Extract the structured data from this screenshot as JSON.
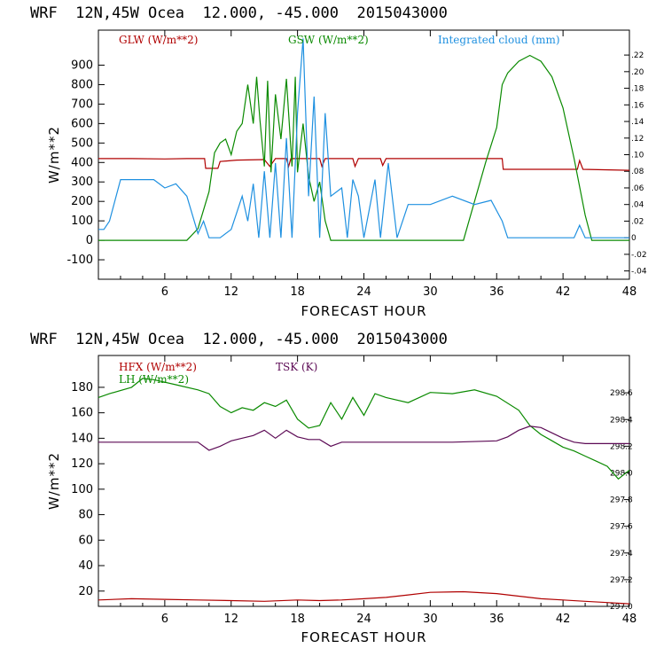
{
  "charts": [
    {
      "title": "WRF  12N,45W Ocea  12.000, -45.000  2015043000"
    },
    {
      "title": "WRF  12N,45W Ocea  12.000, -45.000  2015043000"
    }
  ],
  "chart_data": [
    {
      "type": "line",
      "title": "WRF  12N,45W Ocea  12.000, -45.000  2015043000",
      "xlabel": "FORECAST HOUR",
      "ylabel": "W/m**2",
      "xlim": [
        0,
        48
      ],
      "ylim": [
        -200,
        1080
      ],
      "xticks": [
        "6",
        "12",
        "18",
        "24",
        "30",
        "36",
        "42",
        "48"
      ],
      "yticks": [
        "-100",
        "0",
        "100",
        "200",
        "300",
        "400",
        "500",
        "600",
        "700",
        "800",
        "900"
      ],
      "y2lim": [
        -0.05,
        0.25
      ],
      "y2ticks": [
        "-.04",
        "-.02",
        "0",
        ".02",
        ".04",
        ".06",
        ".08",
        ".10",
        ".12",
        ".14",
        ".16",
        ".18",
        ".20",
        ".22"
      ],
      "series": [
        {
          "name": "GLW (W/m**2)",
          "color": "#b00000",
          "axis": "left",
          "points": [
            [
              0,
              420
            ],
            [
              3,
              420
            ],
            [
              6,
              418
            ],
            [
              8,
              420
            ],
            [
              9.6,
              420
            ],
            [
              9.7,
              370
            ],
            [
              10.8,
              370
            ],
            [
              11,
              405
            ],
            [
              12.5,
              412
            ],
            [
              15,
              415
            ],
            [
              15.5,
              380
            ],
            [
              16,
              420
            ],
            [
              17,
              420
            ],
            [
              17.2,
              380
            ],
            [
              17.4,
              420
            ],
            [
              20,
              420
            ],
            [
              20.2,
              380
            ],
            [
              20.5,
              420
            ],
            [
              23,
              420
            ],
            [
              23.2,
              380
            ],
            [
              23.5,
              420
            ],
            [
              25.5,
              420
            ],
            [
              25.7,
              385
            ],
            [
              26,
              420
            ],
            [
              30,
              420
            ],
            [
              36,
              420
            ],
            [
              36.5,
              420
            ],
            [
              36.6,
              365
            ],
            [
              40,
              365
            ],
            [
              43.3,
              365
            ],
            [
              43.5,
              410
            ],
            [
              43.8,
              365
            ],
            [
              48,
              360
            ]
          ]
        },
        {
          "name": "GSW (W/m**2)",
          "color": "#0a8a00",
          "axis": "left",
          "points": [
            [
              0,
              0
            ],
            [
              8,
              0
            ],
            [
              8.5,
              30
            ],
            [
              9,
              60
            ],
            [
              10,
              250
            ],
            [
              10.5,
              450
            ],
            [
              11,
              500
            ],
            [
              11.5,
              520
            ],
            [
              12,
              440
            ],
            [
              12.5,
              560
            ],
            [
              13,
              600
            ],
            [
              13.5,
              800
            ],
            [
              14,
              600
            ],
            [
              14.3,
              840
            ],
            [
              14.6,
              620
            ],
            [
              15,
              380
            ],
            [
              15.3,
              820
            ],
            [
              15.6,
              350
            ],
            [
              16,
              750
            ],
            [
              16.5,
              520
            ],
            [
              17,
              830
            ],
            [
              17.5,
              380
            ],
            [
              17.8,
              840
            ],
            [
              18,
              350
            ],
            [
              18.5,
              600
            ],
            [
              19,
              330
            ],
            [
              19.5,
              200
            ],
            [
              20,
              300
            ],
            [
              20.5,
              100
            ],
            [
              21,
              0
            ],
            [
              33,
              0
            ],
            [
              34,
              200
            ],
            [
              35,
              400
            ],
            [
              36,
              580
            ],
            [
              36.5,
              800
            ],
            [
              37,
              860
            ],
            [
              38,
              920
            ],
            [
              39,
              950
            ],
            [
              40,
              920
            ],
            [
              41,
              840
            ],
            [
              42,
              680
            ],
            [
              43,
              420
            ],
            [
              44,
              130
            ],
            [
              44.6,
              0
            ],
            [
              48,
              0
            ]
          ]
        },
        {
          "name": "Integrated cloud (mm)",
          "color": "#1e90e0",
          "axis": "right",
          "points": [
            [
              0,
              0.01
            ],
            [
              0.5,
              0.01
            ],
            [
              1,
              0.02
            ],
            [
              2,
              0.07
            ],
            [
              3,
              0.07
            ],
            [
              5,
              0.07
            ],
            [
              6,
              0.06
            ],
            [
              7,
              0.065
            ],
            [
              8,
              0.05
            ],
            [
              9,
              0.005
            ],
            [
              9.5,
              0.02
            ],
            [
              10,
              0
            ],
            [
              11,
              0
            ],
            [
              12,
              0.01
            ],
            [
              13,
              0.05
            ],
            [
              13.5,
              0.02
            ],
            [
              14,
              0.065
            ],
            [
              14.5,
              0.0
            ],
            [
              15,
              0.08
            ],
            [
              15.5,
              0.0
            ],
            [
              16,
              0.09
            ],
            [
              16.5,
              0.0
            ],
            [
              17,
              0.12
            ],
            [
              17.5,
              0.0
            ],
            [
              18,
              0.15
            ],
            [
              18.5,
              0.24
            ],
            [
              19,
              0.05
            ],
            [
              19.5,
              0.17
            ],
            [
              20,
              0.0
            ],
            [
              20.5,
              0.15
            ],
            [
              21,
              0.05
            ],
            [
              22,
              0.06
            ],
            [
              22.5,
              0.0
            ],
            [
              23,
              0.07
            ],
            [
              23.5,
              0.05
            ],
            [
              24,
              0.0
            ],
            [
              25,
              0.07
            ],
            [
              25.5,
              0.0
            ],
            [
              26.2,
              0.09
            ],
            [
              27,
              0.0
            ],
            [
              28,
              0.04
            ],
            [
              30,
              0.04
            ],
            [
              32,
              0.05
            ],
            [
              34,
              0.04
            ],
            [
              35.5,
              0.045
            ],
            [
              36.5,
              0.02
            ],
            [
              37,
              0.0
            ],
            [
              42,
              0.0
            ],
            [
              43,
              0.0
            ],
            [
              43.5,
              0.015
            ],
            [
              44,
              0.0
            ],
            [
              48,
              0.0
            ]
          ]
        }
      ],
      "legend": [
        "GLW (W/m**2)",
        "GSW (W/m**2)",
        "Integrated cloud (mm)"
      ]
    },
    {
      "type": "line",
      "title": "WRF  12N,45W Ocea  12.000, -45.000  2015043000",
      "xlabel": "FORECAST HOUR",
      "ylabel": "W/m**2",
      "xlim": [
        0,
        48
      ],
      "ylim": [
        8,
        205
      ],
      "xticks": [
        "6",
        "12",
        "18",
        "24",
        "30",
        "36",
        "42",
        "48"
      ],
      "yticks": [
        "20",
        "40",
        "60",
        "80",
        "100",
        "120",
        "140",
        "160",
        "180"
      ],
      "y2lim": [
        297.0,
        298.88
      ],
      "y2ticks": [
        "297.0",
        "297.2",
        "297.4",
        "297.6",
        "297.8",
        "298.0",
        "298.2",
        "298.4",
        "298.6"
      ],
      "series": [
        {
          "name": "HFX (W/m**2)",
          "color": "#b00000",
          "axis": "left",
          "points": [
            [
              0,
              13
            ],
            [
              3,
              14
            ],
            [
              6,
              13.5
            ],
            [
              9,
              13
            ],
            [
              12,
              12.5
            ],
            [
              15,
              12
            ],
            [
              18,
              13
            ],
            [
              20,
              12.5
            ],
            [
              22,
              13
            ],
            [
              24,
              14
            ],
            [
              26,
              15
            ],
            [
              28,
              17
            ],
            [
              30,
              19
            ],
            [
              33,
              19.5
            ],
            [
              36,
              18
            ],
            [
              38,
              16
            ],
            [
              40,
              14
            ],
            [
              42,
              13
            ],
            [
              44,
              12
            ],
            [
              46,
              11
            ],
            [
              48,
              10
            ]
          ]
        },
        {
          "name": "LH  (W/m**2)",
          "color": "#0a8a00",
          "axis": "left",
          "points": [
            [
              0,
              172
            ],
            [
              1,
              175
            ],
            [
              3,
              180
            ],
            [
              4,
              187
            ],
            [
              5,
              186
            ],
            [
              7,
              182
            ],
            [
              9,
              178
            ],
            [
              10,
              175
            ],
            [
              11,
              165
            ],
            [
              12,
              160
            ],
            [
              13,
              164
            ],
            [
              14,
              162
            ],
            [
              15,
              168
            ],
            [
              16,
              165
            ],
            [
              17,
              170
            ],
            [
              18,
              155
            ],
            [
              19,
              148
            ],
            [
              20,
              150
            ],
            [
              21,
              168
            ],
            [
              22,
              155
            ],
            [
              23,
              172
            ],
            [
              24,
              158
            ],
            [
              25,
              175
            ],
            [
              26,
              172
            ],
            [
              28,
              168
            ],
            [
              30,
              176
            ],
            [
              32,
              175
            ],
            [
              34,
              178
            ],
            [
              36,
              173
            ],
            [
              38,
              162
            ],
            [
              39,
              150
            ],
            [
              40,
              143
            ],
            [
              41,
              138
            ],
            [
              42,
              133
            ],
            [
              43,
              130
            ],
            [
              44,
              126
            ],
            [
              45,
              122
            ],
            [
              46,
              118
            ],
            [
              47,
              108
            ],
            [
              48,
              115
            ]
          ]
        },
        {
          "name": "TSK (K)",
          "color": "#5c0a55",
          "axis": "right",
          "points": [
            [
              0,
              298.23
            ],
            [
              2,
              298.23
            ],
            [
              6,
              298.23
            ],
            [
              9,
              298.23
            ],
            [
              10,
              298.17
            ],
            [
              11,
              298.2
            ],
            [
              12,
              298.24
            ],
            [
              13,
              298.26
            ],
            [
              14,
              298.28
            ],
            [
              15,
              298.32
            ],
            [
              16,
              298.26
            ],
            [
              17,
              298.32
            ],
            [
              18,
              298.27
            ],
            [
              19,
              298.25
            ],
            [
              20,
              298.25
            ],
            [
              21,
              298.2
            ],
            [
              22,
              298.23
            ],
            [
              24,
              298.23
            ],
            [
              28,
              298.23
            ],
            [
              32,
              298.23
            ],
            [
              36,
              298.24
            ],
            [
              37,
              298.27
            ],
            [
              38,
              298.32
            ],
            [
              39,
              298.35
            ],
            [
              40,
              298.34
            ],
            [
              41,
              298.3
            ],
            [
              42,
              298.26
            ],
            [
              43,
              298.23
            ],
            [
              44,
              298.22
            ],
            [
              45,
              298.22
            ],
            [
              48,
              298.22
            ]
          ]
        }
      ],
      "legend": [
        "HFX (W/m**2)",
        "LH  (W/m**2)",
        "TSK (K)"
      ]
    }
  ]
}
